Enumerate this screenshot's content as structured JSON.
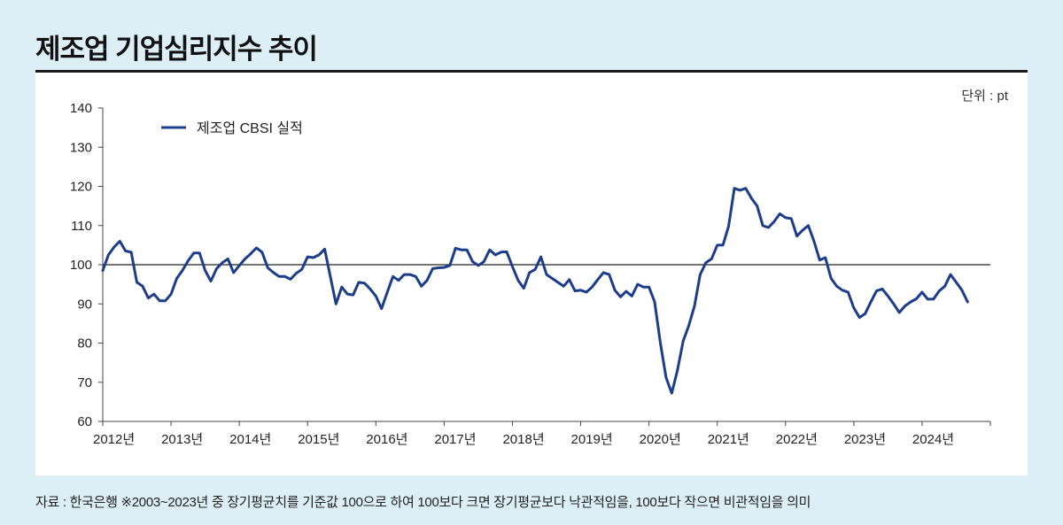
{
  "header": {
    "title": "제조업 기업심리지수 추이"
  },
  "unit_label": "단위 : pt",
  "footer": {
    "source": "자료 : 한국은행 ※2003~2023년 중 장기평균치를 기준값 100으로 하여 100보다 크면 장기평균보다 낙관적임을, 100보다 작으면 비관적임을 의미"
  },
  "colors": {
    "series": "#1c3c8c",
    "baseline": "#222222",
    "axis": "#444444"
  },
  "chart_data": {
    "type": "line",
    "title": "제조업 기업심리지수 추이",
    "xlabel": "",
    "ylabel": "",
    "ylim": [
      60,
      140
    ],
    "yticks": [
      60,
      70,
      80,
      90,
      100,
      110,
      120,
      130,
      140
    ],
    "x_start": 2012.0,
    "x_step": 0.0833333,
    "xlim": [
      2012.0,
      2025.0
    ],
    "xtick_values": [
      2012,
      2013,
      2014,
      2015,
      2016,
      2017,
      2018,
      2019,
      2020,
      2021,
      2022,
      2023,
      2024
    ],
    "xtick_labels": [
      "2012년",
      "2013년",
      "2014년",
      "2015년",
      "2016년",
      "2017년",
      "2018년",
      "2019년",
      "2020년",
      "2021년",
      "2022년",
      "2023년",
      "2024년"
    ],
    "reference_line": 100,
    "legend": {
      "position": "top-left",
      "entries": [
        "제조업 CBSI 실적"
      ]
    },
    "series": [
      {
        "name": "제조업 CBSI 실적",
        "values": [
          98.5,
          102.5,
          104.5,
          106,
          103.5,
          103.2,
          95.5,
          94.5,
          91.5,
          92.5,
          90.8,
          90.8,
          92.5,
          96.5,
          98.5,
          101,
          103,
          103,
          98.5,
          95.8,
          99,
          100.5,
          101.5,
          98,
          99.8,
          101.5,
          102.8,
          104.3,
          103.2,
          99.2,
          98,
          97,
          97,
          96.3,
          97.8,
          98.8,
          102,
          101.8,
          102.5,
          104,
          97,
          90,
          94.3,
          92.5,
          92.3,
          95.5,
          95.3,
          93.8,
          92,
          88.8,
          93,
          97,
          96,
          97.5,
          97.5,
          97,
          94.5,
          96,
          99,
          99.2,
          99.3,
          99.8,
          104.2,
          103.8,
          103.8,
          100.8,
          99.8,
          100.8,
          103.8,
          102.5,
          103.2,
          103.3,
          99.5,
          96,
          94,
          98,
          98.8,
          102,
          97.5,
          96.5,
          95.5,
          94.5,
          96.2,
          93.3,
          93.5,
          93,
          94.3,
          96.2,
          98,
          97.5,
          93.5,
          91.8,
          93.2,
          92,
          95,
          94.3,
          94.3,
          90.5,
          80,
          71.2,
          67.2,
          73,
          80.5,
          84.5,
          89.5,
          97.5,
          100.5,
          101.5,
          105,
          105,
          109.8,
          119.5,
          119,
          119.5,
          117,
          115,
          110,
          109.5,
          111,
          113,
          112,
          111.8,
          107.3,
          108.8,
          110,
          106,
          101.2,
          101.8,
          96.5,
          94.5,
          93.5,
          93,
          89,
          86.5,
          87.5,
          90.5,
          93.3,
          93.8,
          92,
          90,
          87.8,
          89.5,
          90.5,
          91.3,
          93,
          91.2,
          91.2,
          93.3,
          94.5,
          97.5,
          95.5,
          93.5,
          90.5
        ]
      }
    ]
  }
}
